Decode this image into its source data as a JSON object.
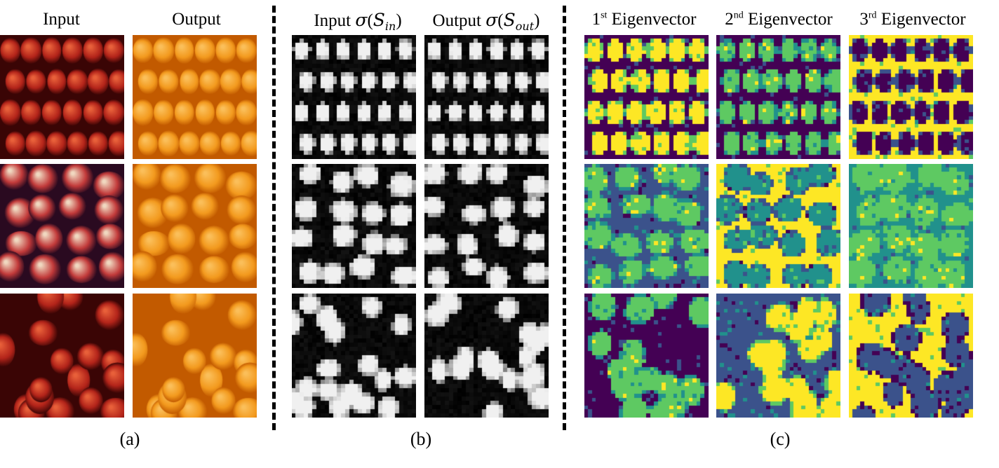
{
  "section_a": {
    "headers": [
      "Input",
      "Output"
    ],
    "caption": "(a)"
  },
  "section_b": {
    "headers": [
      {
        "prefix": "Input ",
        "sigma": "σ",
        "open": "(",
        "var": "S",
        "sub": "in",
        "close": ")"
      },
      {
        "prefix": "Output ",
        "sigma": "σ",
        "open": "(",
        "var": "S",
        "sub": "out",
        "close": ")"
      }
    ],
    "caption": "(b)"
  },
  "section_c": {
    "headers": [
      {
        "ordinal": "1",
        "suffix": "st",
        "word": " Eigenvector"
      },
      {
        "ordinal": "2",
        "suffix": "nd",
        "word": " Eigenvector"
      },
      {
        "ordinal": "3",
        "suffix": "rd",
        "word": " Eigenvector"
      }
    ],
    "caption": "(c)"
  },
  "panels": {
    "a_input": [
      "red apples in rows",
      "red and yellow apples",
      "mixed red apples"
    ],
    "a_output": [
      "oranges in rows",
      "scattered oranges",
      "mixed oranges"
    ],
    "b_saliency": [
      "input saliency map",
      "output saliency map"
    ],
    "c_eigen": [
      "1st eigenvector map",
      "2nd eigenvector map",
      "3rd eigenvector map"
    ]
  },
  "colors": {
    "apple_red": "#b3241a",
    "orange": "#f39a1e",
    "viridis_dark": "#440154",
    "viridis_teal": "#21918c",
    "viridis_green": "#5ec962",
    "viridis_yellow": "#fde725"
  }
}
